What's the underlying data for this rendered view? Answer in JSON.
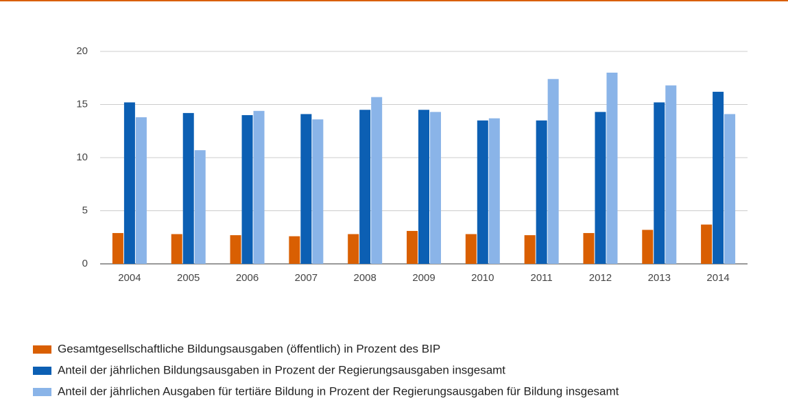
{
  "chart_data": {
    "type": "bar",
    "categories": [
      "2004",
      "2005",
      "2006",
      "2007",
      "2008",
      "2009",
      "2010",
      "2011",
      "2012",
      "2013",
      "2014"
    ],
    "series": [
      {
        "name": "Gesamtgesellschaftliche Bildungsausgaben (öffentlich) in Prozent des BIP",
        "color": "#d95f02",
        "values": [
          2.9,
          2.8,
          2.7,
          2.6,
          2.8,
          3.1,
          2.8,
          2.7,
          2.9,
          3.2,
          3.7
        ]
      },
      {
        "name": "Anteil der jährlichen Bildungsausgaben in Prozent der Regierungsausgaben insgesamt",
        "color": "#0c5fb3",
        "values": [
          15.2,
          14.2,
          14.0,
          14.1,
          14.5,
          14.5,
          13.5,
          13.5,
          14.3,
          15.2,
          16.2
        ]
      },
      {
        "name": "Anteil der jährlichen Ausgaben für tertiäre Bildung in Prozent der Regierungsausgaben für Bildung insgesamt",
        "color": "#8ab4e8",
        "values": [
          13.8,
          10.7,
          14.4,
          13.6,
          15.7,
          14.3,
          13.7,
          17.4,
          18.0,
          16.8,
          14.1
        ]
      }
    ],
    "ylim": [
      0,
      20
    ],
    "yticks": [
      0,
      5,
      10,
      15,
      20
    ],
    "grid": true,
    "legend": "bottom"
  }
}
